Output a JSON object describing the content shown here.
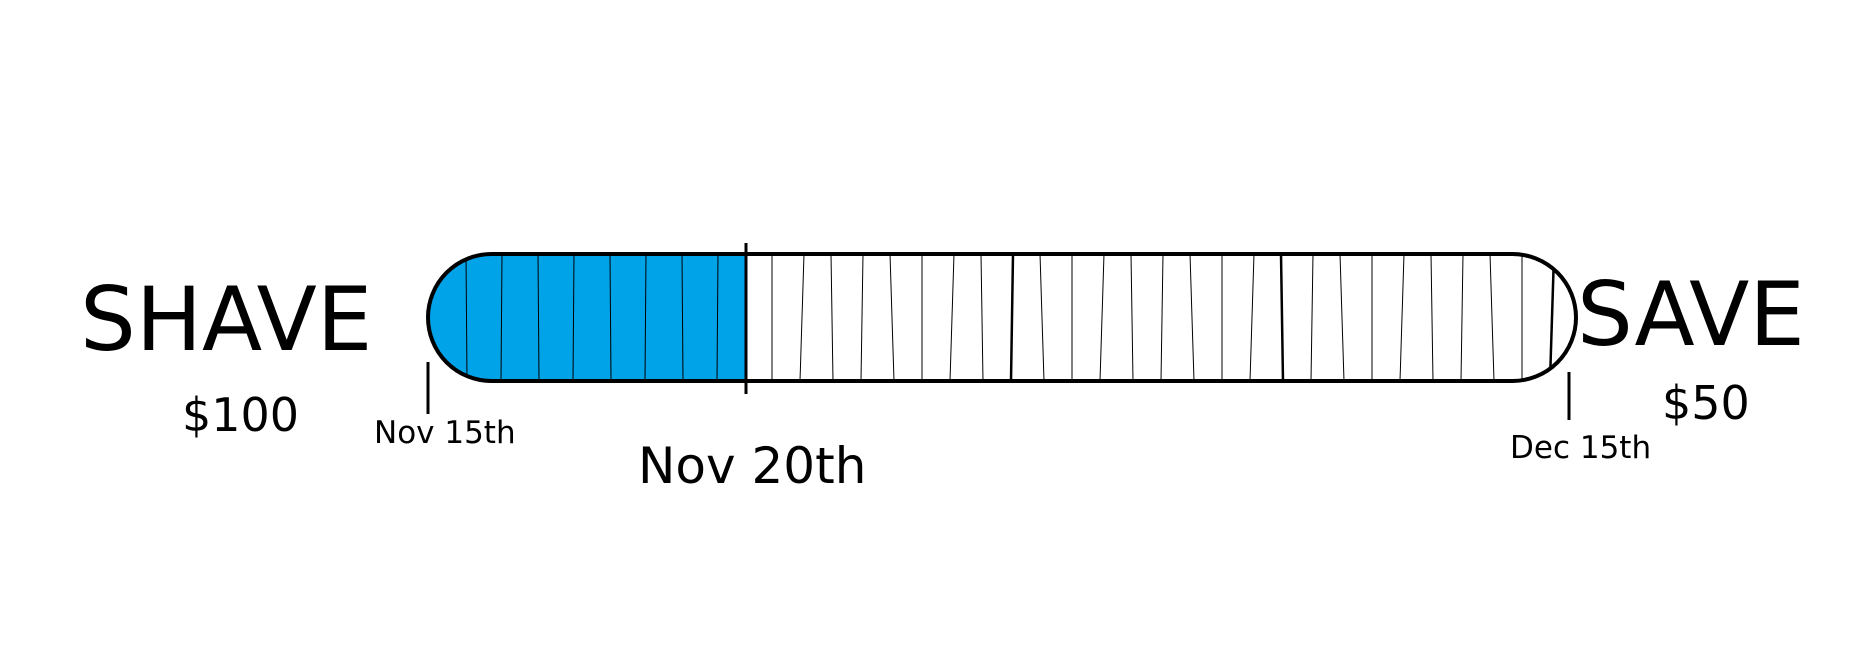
{
  "left": {
    "word": "SHAVE",
    "amount": "$100"
  },
  "right": {
    "word": "SAVE",
    "amount": "$50"
  },
  "timeline": {
    "start_date": "Nov 15th",
    "marker_date": "Nov 20th",
    "end_date": "Dec 15th",
    "fill_color": "#00a2e8",
    "outline_color": "#000000",
    "background_color": "#ffffff",
    "filled_segment_count": 8,
    "total_segment_count": 35
  }
}
